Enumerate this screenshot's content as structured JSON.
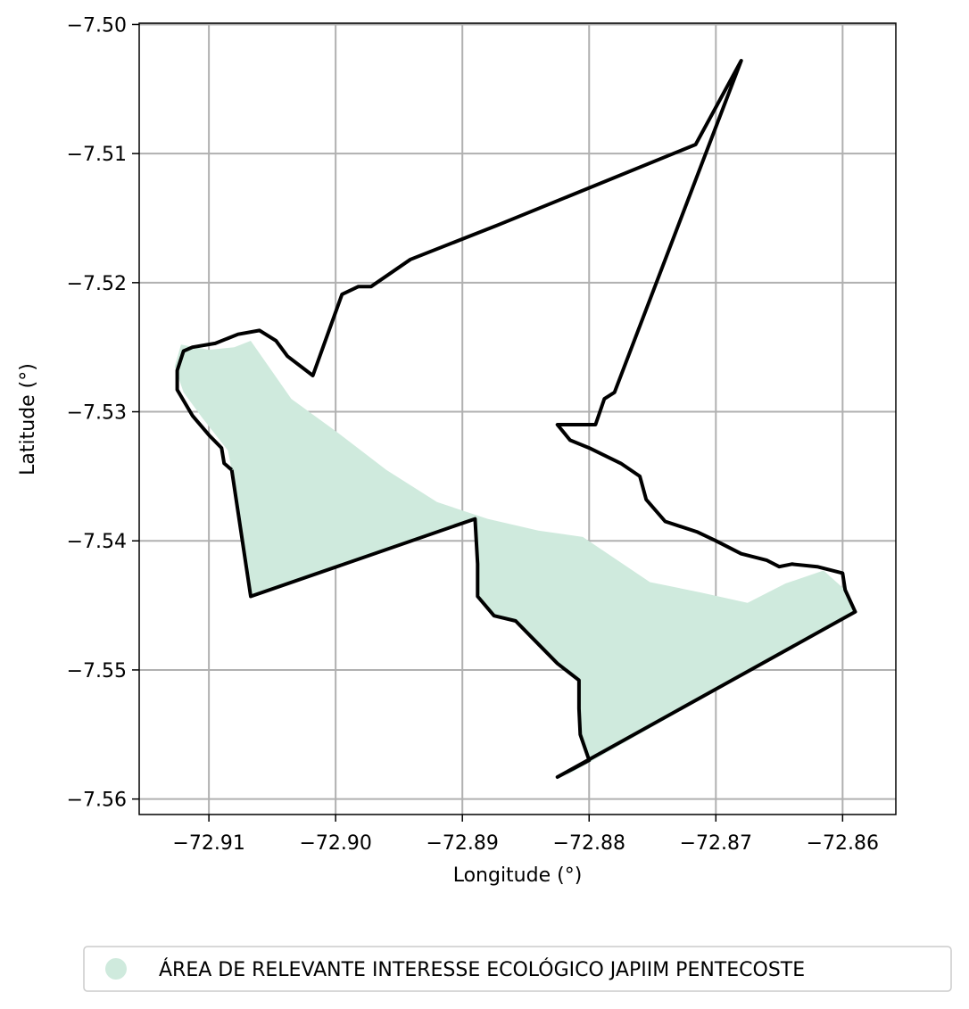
{
  "chart_data": {
    "type": "map",
    "xlabel": "Longitude (°)",
    "ylabel": "Latitude (°)",
    "xlim": [
      -72.9155,
      -72.8558
    ],
    "ylim": [
      -7.5612,
      -7.4999
    ],
    "xticks": [
      -72.91,
      -72.9,
      -72.89,
      -72.88,
      -72.87,
      -72.86
    ],
    "xtick_labels": [
      "−72.91",
      "−72.90",
      "−72.89",
      "−72.88",
      "−72.87",
      "−72.86"
    ],
    "yticks": [
      -7.5,
      -7.51,
      -7.52,
      -7.53,
      -7.54,
      -7.55,
      -7.56
    ],
    "ytick_labels": [
      "−7.50",
      "−7.51",
      "−7.52",
      "−7.53",
      "−7.54",
      "−7.55",
      "−7.56"
    ],
    "grid": true,
    "legend": {
      "placement": "bottom",
      "entries": [
        {
          "label": "ÁREA DE RELEVANTE INTERESSE ECOLÓGICO JAPIIM PENTECOSTE",
          "color": "#cfeadd"
        }
      ]
    },
    "colors": {
      "fill": "#cfeadd",
      "boundary": "#000000",
      "grid": "#b0b0b0"
    },
    "filled_area": [
      [
        -72.9067,
        -7.5245
      ],
      [
        -72.9035,
        -7.529
      ],
      [
        -72.9,
        -7.5315
      ],
      [
        -72.896,
        -7.5345
      ],
      [
        -72.892,
        -7.537
      ],
      [
        -72.888,
        -7.5383
      ],
      [
        -72.884,
        -7.5392
      ],
      [
        -72.8805,
        -7.5397
      ],
      [
        -72.8752,
        -7.5432
      ],
      [
        -72.8712,
        -7.544
      ],
      [
        -72.8675,
        -7.5448
      ],
      [
        -72.8645,
        -7.5433
      ],
      [
        -72.8615,
        -7.5423
      ],
      [
        -72.8598,
        -7.5438
      ],
      [
        -72.859,
        -7.5455
      ],
      [
        -72.882,
        -7.5583
      ],
      [
        -72.88,
        -7.557
      ],
      [
        -72.8807,
        -7.555
      ],
      [
        -72.8808,
        -7.553
      ],
      [
        -72.8808,
        -7.5508
      ],
      [
        -72.8825,
        -7.5495
      ],
      [
        -72.8845,
        -7.5475
      ],
      [
        -72.8858,
        -7.5462
      ],
      [
        -72.8875,
        -7.5458
      ],
      [
        -72.8888,
        -7.5443
      ],
      [
        -72.8888,
        -7.5418
      ],
      [
        -72.889,
        -7.5383
      ],
      [
        -72.9067,
        -7.5443
      ],
      [
        -72.9082,
        -7.5345
      ],
      [
        -72.9085,
        -7.533
      ],
      [
        -72.9105,
        -7.5305
      ],
      [
        -72.912,
        -7.5285
      ],
      [
        -72.9127,
        -7.5265
      ],
      [
        -72.9122,
        -7.5248
      ],
      [
        -72.91,
        -7.5252
      ],
      [
        -72.908,
        -7.525
      ]
    ],
    "boundary": [
      [
        -72.9082,
        -7.5345
      ],
      [
        -72.9067,
        -7.5443
      ],
      [
        -72.889,
        -7.5383
      ],
      [
        -72.8888,
        -7.5418
      ],
      [
        -72.8888,
        -7.5443
      ],
      [
        -72.8875,
        -7.5458
      ],
      [
        -72.8858,
        -7.5462
      ],
      [
        -72.8845,
        -7.5475
      ],
      [
        -72.8825,
        -7.5495
      ],
      [
        -72.8808,
        -7.5508
      ],
      [
        -72.8808,
        -7.553
      ],
      [
        -72.8807,
        -7.555
      ],
      [
        -72.88,
        -7.557
      ],
      [
        -72.8825,
        -7.5583
      ],
      [
        -72.859,
        -7.5455
      ],
      [
        -72.8598,
        -7.5438
      ],
      [
        -72.86,
        -7.5425
      ],
      [
        -72.862,
        -7.542
      ],
      [
        -72.864,
        -7.5418
      ],
      [
        -72.865,
        -7.542
      ],
      [
        -72.866,
        -7.5415
      ],
      [
        -72.868,
        -7.541
      ],
      [
        -72.87,
        -7.54
      ],
      [
        -72.8715,
        -7.5393
      ],
      [
        -72.874,
        -7.5385
      ],
      [
        -72.8755,
        -7.5368
      ],
      [
        -72.876,
        -7.535
      ],
      [
        -72.8775,
        -7.534
      ],
      [
        -72.88,
        -7.5328
      ],
      [
        -72.8815,
        -7.5322
      ],
      [
        -72.8825,
        -7.531
      ],
      [
        -72.8795,
        -7.531
      ],
      [
        -72.8788,
        -7.529
      ],
      [
        -72.878,
        -7.5285
      ],
      [
        -72.868,
        -7.5028
      ],
      [
        -72.8716,
        -7.5093
      ],
      [
        -72.8871,
        -7.5155
      ],
      [
        -72.8941,
        -7.5182
      ],
      [
        -72.8972,
        -7.5203
      ],
      [
        -72.8982,
        -7.5203
      ],
      [
        -72.8995,
        -7.5209
      ],
      [
        -72.9018,
        -7.5272
      ],
      [
        -72.9038,
        -7.5257
      ],
      [
        -72.9047,
        -7.5245
      ],
      [
        -72.906,
        -7.5237
      ],
      [
        -72.9077,
        -7.524
      ],
      [
        -72.9095,
        -7.5247
      ],
      [
        -72.9113,
        -7.525
      ],
      [
        -72.912,
        -7.5253
      ],
      [
        -72.9125,
        -7.5268
      ],
      [
        -72.9125,
        -7.5283
      ],
      [
        -72.9113,
        -7.5303
      ],
      [
        -72.91,
        -7.5318
      ],
      [
        -72.909,
        -7.5328
      ],
      [
        -72.9088,
        -7.534
      ],
      [
        -72.9082,
        -7.5345
      ]
    ]
  }
}
